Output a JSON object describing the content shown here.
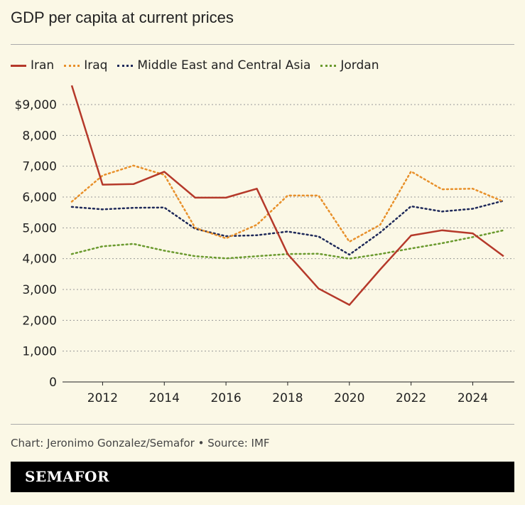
{
  "chart_data": {
    "type": "line",
    "title": "GDP per capita at current prices",
    "x": [
      2011,
      2012,
      2013,
      2014,
      2015,
      2016,
      2017,
      2018,
      2019,
      2020,
      2021,
      2022,
      2023,
      2024,
      2025
    ],
    "x_ticks": [
      "2012",
      "2014",
      "2016",
      "2018",
      "2020",
      "2022",
      "2024"
    ],
    "y_ticks": [
      "0",
      "1,000",
      "2,000",
      "3,000",
      "4,000",
      "5,000",
      "6,000",
      "7,000",
      "8,000",
      "$9,000"
    ],
    "ylim": [
      0,
      9000
    ],
    "grid": "horizontal dashed",
    "legend_position": "top",
    "series": [
      {
        "name": "Iran",
        "color": "#b5392a",
        "style": "solid",
        "values": [
          9620,
          6400,
          6420,
          6820,
          5980,
          5980,
          6270,
          4150,
          3030,
          2500,
          3650,
          4750,
          4920,
          4820,
          4080
        ]
      },
      {
        "name": "Iraq",
        "color": "#e8902a",
        "style": "dotted",
        "values": [
          5850,
          6700,
          7020,
          6720,
          5000,
          4660,
          5100,
          6050,
          6050,
          4550,
          5100,
          6830,
          6250,
          6270,
          5850
        ]
      },
      {
        "name": "Middle East and Central Asia",
        "color": "#1f2a5a",
        "style": "dotted",
        "values": [
          5680,
          5600,
          5650,
          5660,
          4970,
          4730,
          4760,
          4880,
          4720,
          4130,
          4850,
          5700,
          5530,
          5620,
          5880
        ]
      },
      {
        "name": "Jordan",
        "color": "#6a9a2e",
        "style": "dotted",
        "values": [
          4150,
          4400,
          4480,
          4260,
          4080,
          4010,
          4080,
          4150,
          4160,
          4000,
          4150,
          4330,
          4500,
          4700,
          4920
        ]
      }
    ]
  },
  "source": "Chart: Jeronimo Gonzalez/Semafor • Source: IMF",
  "logo": "SEMAFOR"
}
